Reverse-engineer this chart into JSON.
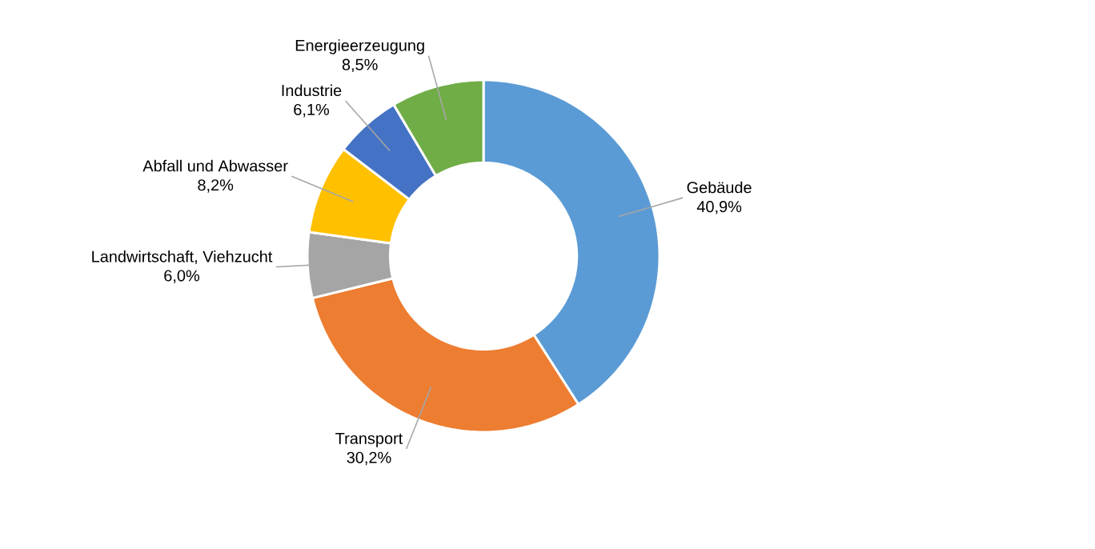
{
  "chart_data": {
    "type": "donut",
    "categories": [
      "Gebäude",
      "Transport",
      "Landwirtschaft, Viehzucht",
      "Abfall und Abwasser",
      "Industrie",
      "Energieerzeugung"
    ],
    "values": [
      40.9,
      30.2,
      6.0,
      8.2,
      6.1,
      8.5
    ],
    "value_labels": [
      "40,9%",
      "30,2%",
      "6,0%",
      "8,2%",
      "6,1%",
      "8,5%"
    ],
    "colors": [
      "#5b9bd5",
      "#ed7d31",
      "#a5a5a5",
      "#ffc000",
      "#4472c4",
      "#70ad47"
    ]
  }
}
